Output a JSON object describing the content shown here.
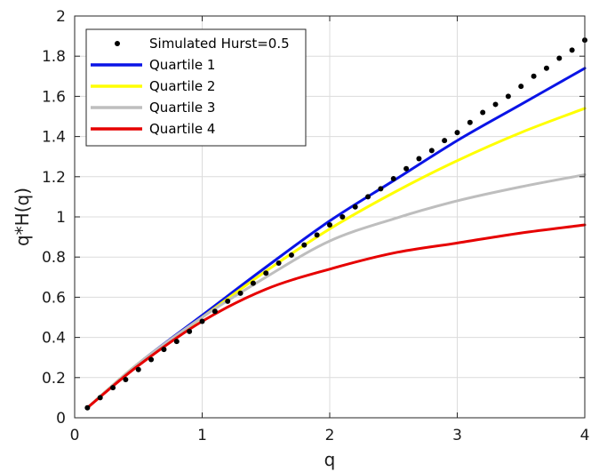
{
  "chart_data": {
    "type": "line",
    "title": "",
    "xlabel": "q",
    "ylabel": "q*H(q)",
    "xlim": [
      0,
      4
    ],
    "ylim": [
      0,
      2
    ],
    "xticks": [
      "0",
      "1",
      "2",
      "3",
      "4"
    ],
    "yticks": [
      "0",
      "0.2",
      "0.4",
      "0.6",
      "0.8",
      "1",
      "1.2",
      "1.4",
      "1.6",
      "1.8",
      "2"
    ],
    "grid": true,
    "legend_position": "top-left",
    "series": [
      {
        "name": "Simulated Hurst=0.5",
        "style": "dots",
        "color": "#000000",
        "x": [
          0.1,
          0.2,
          0.3,
          0.4,
          0.5,
          0.6,
          0.7,
          0.8,
          0.9,
          1.0,
          1.1,
          1.2,
          1.3,
          1.4,
          1.5,
          1.6,
          1.7,
          1.8,
          1.9,
          2.0,
          2.1,
          2.2,
          2.3,
          2.4,
          2.5,
          2.6,
          2.7,
          2.8,
          2.9,
          3.0,
          3.1,
          3.2,
          3.3,
          3.4,
          3.5,
          3.6,
          3.7,
          3.8,
          3.9,
          4.0
        ],
        "y": [
          0.05,
          0.1,
          0.15,
          0.19,
          0.24,
          0.29,
          0.34,
          0.38,
          0.43,
          0.48,
          0.53,
          0.58,
          0.62,
          0.67,
          0.72,
          0.77,
          0.81,
          0.86,
          0.91,
          0.96,
          1.0,
          1.05,
          1.1,
          1.14,
          1.19,
          1.24,
          1.29,
          1.33,
          1.38,
          1.42,
          1.47,
          1.52,
          1.56,
          1.6,
          1.65,
          1.7,
          1.74,
          1.79,
          1.83,
          1.88
        ]
      },
      {
        "name": "Quartile 1",
        "style": "line",
        "color": "#0a14e6",
        "x": [
          0.1,
          0.5,
          1.0,
          1.5,
          2.0,
          2.5,
          3.0,
          3.5,
          4.0
        ],
        "y": [
          0.05,
          0.27,
          0.51,
          0.75,
          0.98,
          1.18,
          1.38,
          1.56,
          1.74
        ]
      },
      {
        "name": "Quartile 2",
        "style": "line",
        "color": "#ffff00",
        "x": [
          0.1,
          0.5,
          1.0,
          1.5,
          2.0,
          2.5,
          3.0,
          3.5,
          4.0
        ],
        "y": [
          0.05,
          0.27,
          0.5,
          0.73,
          0.94,
          1.12,
          1.28,
          1.42,
          1.54
        ]
      },
      {
        "name": "Quartile 3",
        "style": "line",
        "color": "#bebebe",
        "x": [
          0.1,
          0.5,
          1.0,
          1.5,
          2.0,
          2.5,
          3.0,
          3.5,
          4.0
        ],
        "y": [
          0.05,
          0.27,
          0.5,
          0.7,
          0.88,
          0.99,
          1.08,
          1.15,
          1.21
        ]
      },
      {
        "name": "Quartile 4",
        "style": "line",
        "color": "#e60000",
        "x": [
          0.1,
          0.5,
          1.0,
          1.5,
          2.0,
          2.5,
          3.0,
          3.5,
          4.0
        ],
        "y": [
          0.05,
          0.26,
          0.48,
          0.64,
          0.74,
          0.82,
          0.87,
          0.92,
          0.96
        ]
      }
    ]
  }
}
